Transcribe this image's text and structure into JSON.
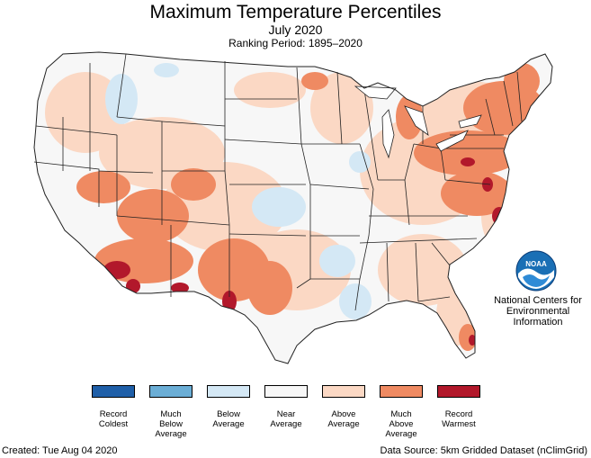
{
  "title": "Maximum Temperature Percentiles",
  "subtitle": "July 2020",
  "ranking_period": "Ranking Period: 1895–2020",
  "legend": [
    {
      "line1": "Record",
      "line2": "Coldest",
      "line3": "",
      "color": "#1f5fa8"
    },
    {
      "line1": "Much",
      "line2": "Below",
      "line3": "Average",
      "color": "#6baed6"
    },
    {
      "line1": "Below",
      "line2": "Average",
      "line3": "",
      "color": "#d4e8f5"
    },
    {
      "line1": "Near",
      "line2": "Average",
      "line3": "",
      "color": "#f7f7f7"
    },
    {
      "line1": "Above",
      "line2": "Average",
      "line3": "",
      "color": "#fbd8c4"
    },
    {
      "line1": "Much",
      "line2": "Above",
      "line3": "Average",
      "color": "#ef8a62"
    },
    {
      "line1": "Record",
      "line2": "Warmest",
      "line3": "",
      "color": "#b2182b"
    }
  ],
  "org": {
    "logo_text": "NOAA",
    "line1": "National Centers for",
    "line2": "Environmental",
    "line3": "Information"
  },
  "footer": {
    "created": "Created: Tue Aug 04 2020",
    "source": "Data Source: 5km Gridded Dataset (nClimGrid)"
  }
}
